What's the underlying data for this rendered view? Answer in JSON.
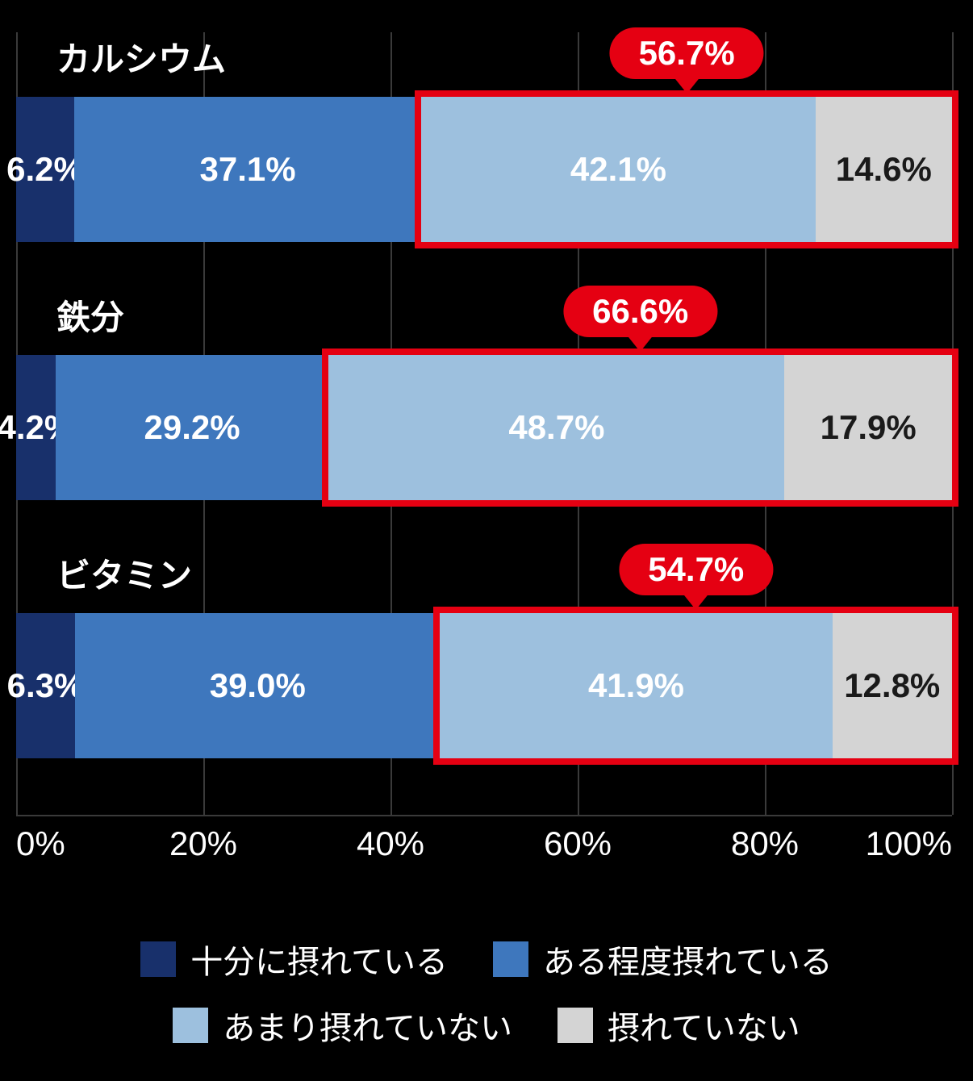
{
  "chart": {
    "type": "stacked-bar-horizontal",
    "background_color": "#000000",
    "grid_color": "#3a3a3a",
    "highlight_border_color": "#e50012",
    "callout_bg_color": "#e50012",
    "callout_text_color": "#ffffff",
    "x_ticks": [
      "0%",
      "20%",
      "40%",
      "60%",
      "80%",
      "100%"
    ],
    "x_tick_positions_pct": [
      0,
      20,
      40,
      60,
      80,
      100
    ],
    "series_colors": {
      "seg1": "#18306b",
      "seg2": "#3e77bd",
      "seg3": "#9dc0de",
      "seg4": "#d4d4d4"
    },
    "label_text_colors": {
      "seg1": "#ffffff",
      "seg2": "#ffffff",
      "seg3": "#ffffff",
      "seg4": "#1a1a1a"
    },
    "rows": [
      {
        "title": "カルシウム",
        "callout": "56.7%",
        "highlight_start_pct": 43.3,
        "highlight_end_pct": 100,
        "segments": [
          {
            "key": "seg1",
            "value": 6.2,
            "label": "6.2%"
          },
          {
            "key": "seg2",
            "value": 37.1,
            "label": "37.1%"
          },
          {
            "key": "seg3",
            "value": 42.1,
            "label": "42.1%"
          },
          {
            "key": "seg4",
            "value": 14.6,
            "label": "14.6%"
          }
        ]
      },
      {
        "title": "鉄分",
        "callout": "66.6%",
        "highlight_start_pct": 33.4,
        "highlight_end_pct": 100,
        "segments": [
          {
            "key": "seg1",
            "value": 4.2,
            "label": "4.2%"
          },
          {
            "key": "seg2",
            "value": 29.2,
            "label": "29.2%"
          },
          {
            "key": "seg3",
            "value": 48.7,
            "label": "48.7%"
          },
          {
            "key": "seg4",
            "value": 17.9,
            "label": "17.9%"
          }
        ]
      },
      {
        "title": "ビタミン",
        "callout": "54.7%",
        "highlight_start_pct": 45.3,
        "highlight_end_pct": 100,
        "segments": [
          {
            "key": "seg1",
            "value": 6.3,
            "label": "6.3%"
          },
          {
            "key": "seg2",
            "value": 39.0,
            "label": "39.0%"
          },
          {
            "key": "seg3",
            "value": 41.9,
            "label": "41.9%"
          },
          {
            "key": "seg4",
            "value": 12.8,
            "label": "12.8%"
          }
        ]
      }
    ],
    "legend": [
      {
        "color_key": "seg1",
        "label": "十分に摂れている"
      },
      {
        "color_key": "seg2",
        "label": "ある程度摂れている"
      },
      {
        "color_key": "seg3",
        "label": "あまり摂れていない"
      },
      {
        "color_key": "seg4",
        "label": "摂れていない"
      }
    ],
    "fontsize_title": 42,
    "fontsize_value": 42,
    "fontsize_legend": 40
  }
}
